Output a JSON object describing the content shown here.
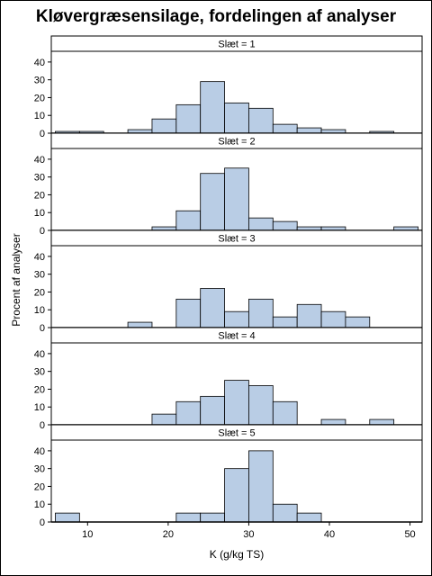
{
  "chart_data": {
    "type": "bar",
    "title": "Kløvergræsensilage, fordelingen af analyser",
    "xlabel": "K (g/kg TS)",
    "ylabel": "Procent af analyser",
    "xlim": [
      5.5,
      51.5
    ],
    "ylim": [
      0,
      45
    ],
    "x_ticks": [
      10,
      20,
      30,
      40,
      50
    ],
    "y_ticks": [
      0,
      10,
      20,
      30,
      40
    ],
    "bin_width": 3,
    "bar_color": "#b9cde5",
    "panels": [
      {
        "label": "Slæt = 1",
        "bins": [
          {
            "x0": 6,
            "x1": 9,
            "value": 1
          },
          {
            "x0": 9,
            "x1": 12,
            "value": 1
          },
          {
            "x0": 15,
            "x1": 18,
            "value": 2
          },
          {
            "x0": 18,
            "x1": 21,
            "value": 8
          },
          {
            "x0": 21,
            "x1": 24,
            "value": 16
          },
          {
            "x0": 24,
            "x1": 27,
            "value": 29
          },
          {
            "x0": 27,
            "x1": 30,
            "value": 17
          },
          {
            "x0": 30,
            "x1": 33,
            "value": 14
          },
          {
            "x0": 33,
            "x1": 36,
            "value": 5
          },
          {
            "x0": 36,
            "x1": 39,
            "value": 3
          },
          {
            "x0": 39,
            "x1": 42,
            "value": 2
          },
          {
            "x0": 45,
            "x1": 48,
            "value": 1
          }
        ]
      },
      {
        "label": "Slæt = 2",
        "bins": [
          {
            "x0": 18,
            "x1": 21,
            "value": 2
          },
          {
            "x0": 21,
            "x1": 24,
            "value": 11
          },
          {
            "x0": 24,
            "x1": 27,
            "value": 32
          },
          {
            "x0": 27,
            "x1": 30,
            "value": 35
          },
          {
            "x0": 30,
            "x1": 33,
            "value": 7
          },
          {
            "x0": 33,
            "x1": 36,
            "value": 5
          },
          {
            "x0": 36,
            "x1": 39,
            "value": 2
          },
          {
            "x0": 39,
            "x1": 42,
            "value": 2
          },
          {
            "x0": 48,
            "x1": 51,
            "value": 2
          }
        ]
      },
      {
        "label": "Slæt = 3",
        "bins": [
          {
            "x0": 15,
            "x1": 18,
            "value": 3
          },
          {
            "x0": 21,
            "x1": 24,
            "value": 16
          },
          {
            "x0": 24,
            "x1": 27,
            "value": 22
          },
          {
            "x0": 27,
            "x1": 30,
            "value": 9
          },
          {
            "x0": 30,
            "x1": 33,
            "value": 16
          },
          {
            "x0": 33,
            "x1": 36,
            "value": 6
          },
          {
            "x0": 36,
            "x1": 39,
            "value": 13
          },
          {
            "x0": 39,
            "x1": 42,
            "value": 9
          },
          {
            "x0": 42,
            "x1": 45,
            "value": 6
          }
        ]
      },
      {
        "label": "Slæt = 4",
        "bins": [
          {
            "x0": 18,
            "x1": 21,
            "value": 6
          },
          {
            "x0": 21,
            "x1": 24,
            "value": 13
          },
          {
            "x0": 24,
            "x1": 27,
            "value": 16
          },
          {
            "x0": 27,
            "x1": 30,
            "value": 25
          },
          {
            "x0": 30,
            "x1": 33,
            "value": 22
          },
          {
            "x0": 33,
            "x1": 36,
            "value": 13
          },
          {
            "x0": 39,
            "x1": 42,
            "value": 3
          },
          {
            "x0": 45,
            "x1": 48,
            "value": 3
          }
        ]
      },
      {
        "label": "Slæt = 5",
        "bins": [
          {
            "x0": 6,
            "x1": 9,
            "value": 5
          },
          {
            "x0": 21,
            "x1": 24,
            "value": 5
          },
          {
            "x0": 24,
            "x1": 27,
            "value": 5
          },
          {
            "x0": 27,
            "x1": 30,
            "value": 30
          },
          {
            "x0": 30,
            "x1": 33,
            "value": 40
          },
          {
            "x0": 33,
            "x1": 36,
            "value": 10
          },
          {
            "x0": 36,
            "x1": 39,
            "value": 5
          }
        ]
      }
    ]
  }
}
